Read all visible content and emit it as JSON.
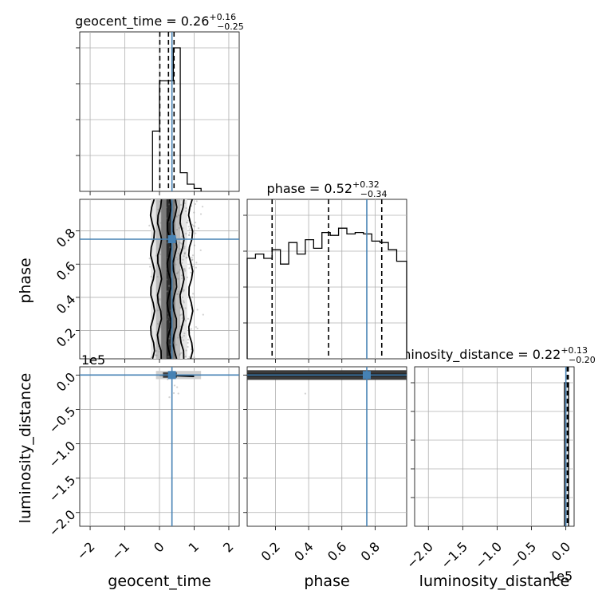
{
  "chart_data": {
    "type": "corner",
    "parameters": [
      "geocent_time",
      "phase",
      "luminosity_distance"
    ],
    "truth": {
      "geocent_time": 0.36,
      "phase": 0.75,
      "luminosity_distance": 0.0
    },
    "titles": [
      {
        "name": "geocent_time",
        "median": "0.26",
        "plus": "+0.16",
        "minus": "−0.25"
      },
      {
        "name": "phase",
        "median": "0.52",
        "plus": "+0.32",
        "minus": "−0.34"
      },
      {
        "name": "luminosity_distance",
        "median": "0.22",
        "plus": "+0.13",
        "minus": "−0.20"
      }
    ],
    "quantiles": {
      "geocent_time": [
        0.01,
        0.26,
        0.42
      ],
      "phase": [
        0.18,
        0.52,
        0.84
      ],
      "luminosity_distance": [
        0.02,
        0.22,
        0.35
      ]
    },
    "axes": {
      "geocent_time": {
        "range": [
          -2.3,
          2.3
        ],
        "ticks": [
          -2,
          -1,
          0,
          1,
          2
        ],
        "tick_labels": [
          "−2",
          "−1",
          "0",
          "1",
          "2"
        ]
      },
      "phase": {
        "range": [
          0.03,
          0.99
        ],
        "ticks": [
          0.2,
          0.4,
          0.6,
          0.8
        ],
        "tick_labels": [
          "0.2",
          "0.4",
          "0.6",
          "0.8"
        ]
      },
      "luminosity_distance": {
        "range": [
          -2.2,
          0.12
        ],
        "ticks": [
          -2.0,
          -1.5,
          -1.0,
          -0.5,
          0.0
        ],
        "tick_labels": [
          "−2.0",
          "−1.5",
          "−1.0",
          "−0.5",
          "0.0"
        ],
        "offset_label": "1e5"
      }
    },
    "hist_geocent_time": {
      "edges": [
        -0.2,
        0.0,
        0.2,
        0.4,
        0.6,
        0.8,
        1.0,
        1.2
      ],
      "counts": [
        0.42,
        0.77,
        0.77,
        1.0,
        0.13,
        0.05,
        0.02
      ]
    },
    "hist_phase": {
      "edges": [
        0.03,
        0.08,
        0.13,
        0.18,
        0.23,
        0.28,
        0.33,
        0.38,
        0.43,
        0.48,
        0.53,
        0.58,
        0.63,
        0.68,
        0.73,
        0.78,
        0.83,
        0.88,
        0.93,
        0.99
      ],
      "counts": [
        0.7,
        0.73,
        0.7,
        0.76,
        0.66,
        0.81,
        0.73,
        0.83,
        0.77,
        0.88,
        0.86,
        0.91,
        0.87,
        0.88,
        0.87,
        0.82,
        0.81,
        0.76,
        0.68
      ]
    },
    "hist_luminosity_distance": {
      "edges": [
        -0.02,
        0.04
      ],
      "counts": [
        1.0
      ]
    },
    "grid": true
  },
  "labels": {
    "x0": "geocent_time",
    "x1": "phase",
    "x2": "luminosity_distance",
    "y1": "phase",
    "y2": "luminosity_distance",
    "offset_y": "1e5",
    "offset_x": "1e5"
  },
  "colors": {
    "truth": "#4682b4",
    "hist": "#000000",
    "scatter": "#808080"
  }
}
